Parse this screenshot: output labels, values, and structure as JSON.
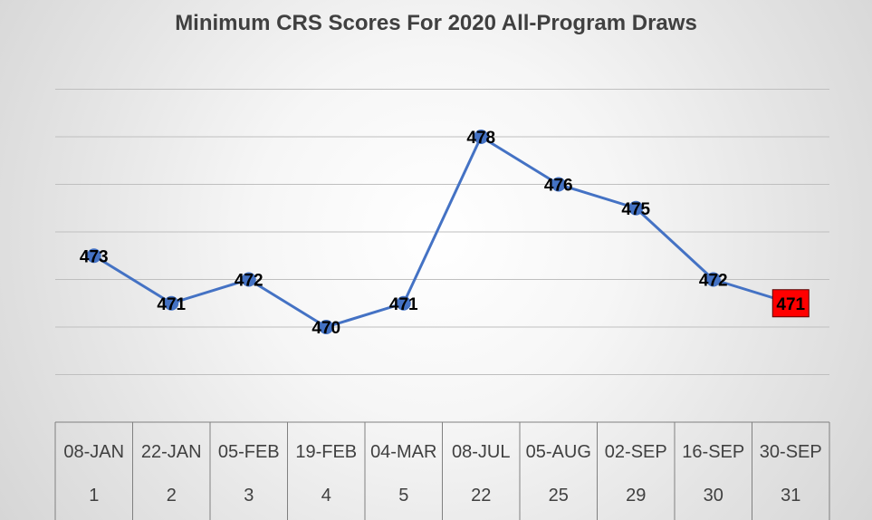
{
  "chart_data": {
    "type": "line",
    "title": "Minimum CRS Scores For 2020 All-Program Draws",
    "xlabel": "",
    "ylabel": "",
    "categories": [
      "08-JAN",
      "22-JAN",
      "05-FEB",
      "19-FEB",
      "04-MAR",
      "08-JUL",
      "05-AUG",
      "02-SEP",
      "16-SEP",
      "30-SEP"
    ],
    "draw_numbers": [
      "1",
      "2",
      "3",
      "4",
      "5",
      "22",
      "25",
      "29",
      "30",
      "31"
    ],
    "series": [
      {
        "values": [
          473,
          471,
          472,
          470,
          471,
          478,
          476,
          475,
          472,
          471
        ],
        "color": "#4472C4"
      }
    ],
    "ylim": [
      466,
      480
    ],
    "grid": true,
    "legend": "none",
    "highlight": {
      "index": 9,
      "color": "#FF0000"
    }
  }
}
